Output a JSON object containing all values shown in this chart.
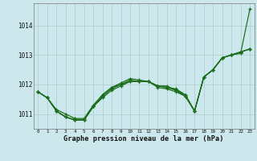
{
  "xlabel": "Graphe pression niveau de la mer (hPa)",
  "background_color": "#cce8ec",
  "grid_color": "#aacccc",
  "line_color": "#1a6b1a",
  "x": [
    0,
    1,
    2,
    3,
    4,
    5,
    6,
    7,
    8,
    9,
    10,
    11,
    12,
    13,
    14,
    15,
    16,
    17,
    18,
    19,
    20,
    21,
    22,
    23
  ],
  "series1": [
    1011.75,
    1011.55,
    1011.1,
    1010.9,
    1010.8,
    1010.8,
    1011.25,
    1011.6,
    1011.85,
    1012.0,
    1012.1,
    1012.1,
    1012.1,
    1011.95,
    1011.9,
    1011.8,
    1011.65,
    1011.1,
    1012.25,
    1012.5,
    1012.9,
    1013.0,
    1013.1,
    1013.2
  ],
  "series2": [
    1011.75,
    1011.55,
    1011.1,
    1010.9,
    1010.8,
    1010.8,
    1011.25,
    1011.65,
    1011.9,
    1012.0,
    1012.15,
    1012.1,
    1012.1,
    1011.95,
    1011.95,
    1011.8,
    1011.6,
    1011.1,
    1012.25,
    1012.5,
    1012.9,
    1013.0,
    1013.1,
    1013.2
  ],
  "series3": [
    1011.75,
    1011.55,
    1011.15,
    1011.0,
    1010.85,
    1010.85,
    1011.3,
    1011.65,
    1011.9,
    1012.05,
    1012.2,
    1012.15,
    1012.1,
    1011.95,
    1011.9,
    1011.85,
    1011.65,
    1011.1,
    1012.25,
    1012.5,
    1012.9,
    1013.0,
    1013.1,
    1013.2
  ],
  "series4": [
    1011.75,
    1011.55,
    1011.1,
    1010.9,
    1010.8,
    1010.8,
    1011.25,
    1011.55,
    1011.8,
    1011.95,
    1012.1,
    1012.1,
    1012.1,
    1011.9,
    1011.85,
    1011.75,
    1011.6,
    1011.1,
    1012.25,
    1012.5,
    1012.9,
    1013.0,
    1013.05,
    1014.55
  ],
  "ylim": [
    1010.5,
    1014.75
  ],
  "yticks": [
    1011,
    1012,
    1013,
    1014
  ],
  "xticks": [
    0,
    1,
    2,
    3,
    4,
    5,
    6,
    7,
    8,
    9,
    10,
    11,
    12,
    13,
    14,
    15,
    16,
    17,
    18,
    19,
    20,
    21,
    22,
    23
  ]
}
